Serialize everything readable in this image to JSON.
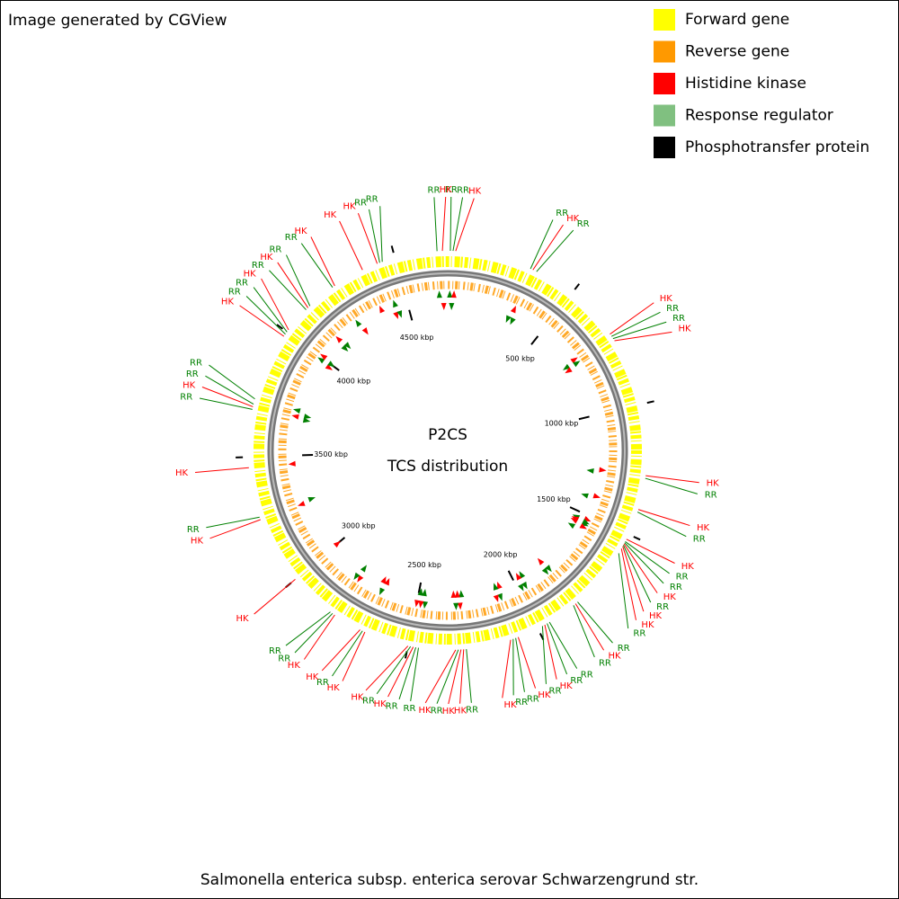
{
  "header": {
    "note": "Image generated by CGView"
  },
  "legend": [
    {
      "label": "Forward gene",
      "color": "#ffff00"
    },
    {
      "label": "Reverse gene",
      "color": "#ff9900"
    },
    {
      "label": "Histidine kinase",
      "color": "#ff0000"
    },
    {
      "label": "Response regulator",
      "color": "#80c080"
    },
    {
      "label": "Phosphotransfer protein",
      "color": "#000000"
    }
  ],
  "map": {
    "title": "P2CS",
    "subtitle": "TCS distribution",
    "lim": [
      0,
      4700
    ],
    "ticks": [
      {
        "value": 500,
        "label": "500 kbp"
      },
      {
        "value": 1000,
        "label": "1000 kbp"
      },
      {
        "value": 1500,
        "label": "1500 kbp"
      },
      {
        "value": 2000,
        "label": "2000 kbp"
      },
      {
        "value": 2500,
        "label": "2500 kbp"
      },
      {
        "value": 3000,
        "label": "3000 kbp"
      },
      {
        "value": 3500,
        "label": "3500 kbp"
      },
      {
        "value": 4000,
        "label": "4000 kbp"
      },
      {
        "value": 4500,
        "label": "4500 kbp"
      }
    ],
    "features": [
      {
        "label": "RR",
        "position": 10,
        "color": "#008000"
      },
      {
        "label": "RR",
        "position": 20,
        "color": "#008000"
      },
      {
        "label": "HK",
        "position": 30,
        "color": "#ff0000"
      },
      {
        "label": "RR",
        "position": 320,
        "color": "#008000"
      },
      {
        "label": "HK",
        "position": 330,
        "color": "#ff0000"
      },
      {
        "label": "RR",
        "position": 345,
        "color": "#008000"
      },
      {
        "label": "HK",
        "position": 710,
        "color": "#ff0000"
      },
      {
        "label": "RR",
        "position": 720,
        "color": "#008000"
      },
      {
        "label": "RR",
        "position": 730,
        "color": "#008000"
      },
      {
        "label": "HK",
        "position": 740,
        "color": "#ff0000"
      },
      {
        "label": "HK",
        "position": 1270,
        "color": "#ff0000"
      },
      {
        "label": "RR",
        "position": 1280,
        "color": "#008000"
      },
      {
        "label": "HK",
        "position": 1400,
        "color": "#ff0000"
      },
      {
        "label": "RR",
        "position": 1410,
        "color": "#008000"
      },
      {
        "label": "HK",
        "position": 1520,
        "color": "#ff0000"
      },
      {
        "label": "RR",
        "position": 1530,
        "color": "#008000"
      },
      {
        "label": "RR",
        "position": 1535,
        "color": "#008000"
      },
      {
        "label": "HK",
        "position": 1540,
        "color": "#ff0000"
      },
      {
        "label": "RR",
        "position": 1545,
        "color": "#008000"
      },
      {
        "label": "HK",
        "position": 1550,
        "color": "#ff0000"
      },
      {
        "label": "HK",
        "position": 1560,
        "color": "#ff0000"
      },
      {
        "label": "RR",
        "position": 1580,
        "color": "#008000"
      },
      {
        "label": "RR",
        "position": 1820,
        "color": "#008000"
      },
      {
        "label": "HK",
        "position": 1830,
        "color": "#ff0000"
      },
      {
        "label": "RR",
        "position": 1840,
        "color": "#008000"
      },
      {
        "label": "RR",
        "position": 1950,
        "color": "#008000"
      },
      {
        "label": "RR",
        "position": 1960,
        "color": "#008000"
      },
      {
        "label": "HK",
        "position": 1970,
        "color": "#ff0000"
      },
      {
        "label": "RR",
        "position": 1980,
        "color": "#008000"
      },
      {
        "label": "HK",
        "position": 2080,
        "color": "#ff0000"
      },
      {
        "label": "RR",
        "position": 2090,
        "color": "#008000"
      },
      {
        "label": "RR",
        "position": 2100,
        "color": "#008000"
      },
      {
        "label": "HK",
        "position": 2110,
        "color": "#ff0000"
      },
      {
        "label": "RR",
        "position": 2280,
        "color": "#008000"
      },
      {
        "label": "HK",
        "position": 2290,
        "color": "#ff0000"
      },
      {
        "label": "HK",
        "position": 2300,
        "color": "#ff0000"
      },
      {
        "label": "RR",
        "position": 2310,
        "color": "#008000"
      },
      {
        "label": "HK",
        "position": 2320,
        "color": "#ff0000"
      },
      {
        "label": "RR",
        "position": 2460,
        "color": "#008000"
      },
      {
        "label": "RR",
        "position": 2470,
        "color": "#008000"
      },
      {
        "label": "HK",
        "position": 2480,
        "color": "#ff0000"
      },
      {
        "label": "RR",
        "position": 2490,
        "color": "#008000"
      },
      {
        "label": "HK",
        "position": 2500,
        "color": "#ff0000"
      },
      {
        "label": "HK",
        "position": 2670,
        "color": "#ff0000"
      },
      {
        "label": "RR",
        "position": 2680,
        "color": "#008000"
      },
      {
        "label": "HK",
        "position": 2690,
        "color": "#ff0000"
      },
      {
        "label": "HK",
        "position": 2800,
        "color": "#ff0000"
      },
      {
        "label": "RR",
        "position": 2810,
        "color": "#008000"
      },
      {
        "label": "RR",
        "position": 2820,
        "color": "#008000"
      },
      {
        "label": "HK",
        "position": 3000,
        "color": "#ff0000"
      },
      {
        "label": "HK",
        "position": 3260,
        "color": "#ff0000"
      },
      {
        "label": "RR",
        "position": 3270,
        "color": "#008000"
      },
      {
        "label": "HK",
        "position": 3460,
        "color": "#ff0000"
      },
      {
        "label": "RR",
        "position": 3680,
        "color": "#008000"
      },
      {
        "label": "HK",
        "position": 3690,
        "color": "#ff0000"
      },
      {
        "label": "RR",
        "position": 3700,
        "color": "#008000"
      },
      {
        "label": "RR",
        "position": 3720,
        "color": "#008000"
      },
      {
        "label": "HK",
        "position": 3980,
        "color": "#ff0000"
      },
      {
        "label": "RR",
        "position": 3990,
        "color": "#008000"
      },
      {
        "label": "RR",
        "position": 4000,
        "color": "#008000"
      },
      {
        "label": "HK",
        "position": 4010,
        "color": "#ff0000"
      },
      {
        "label": "RR",
        "position": 4110,
        "color": "#008000"
      },
      {
        "label": "HK",
        "position": 4120,
        "color": "#ff0000"
      },
      {
        "label": "RR",
        "position": 4130,
        "color": "#008000"
      },
      {
        "label": "RR",
        "position": 4240,
        "color": "#008000"
      },
      {
        "label": "HK",
        "position": 4250,
        "color": "#ff0000"
      },
      {
        "label": "HK",
        "position": 4370,
        "color": "#ff0000"
      },
      {
        "label": "HK",
        "position": 4430,
        "color": "#ff0000"
      },
      {
        "label": "RR",
        "position": 4440,
        "color": "#008000"
      },
      {
        "label": "RR",
        "position": 4450,
        "color": "#008000"
      },
      {
        "label": "RR",
        "position": 4660,
        "color": "#008000"
      },
      {
        "label": "HK",
        "position": 4680,
        "color": "#ff0000"
      }
    ]
  },
  "footer": "Salmonella enterica subsp. enterica serovar Schwarzengrund str."
}
